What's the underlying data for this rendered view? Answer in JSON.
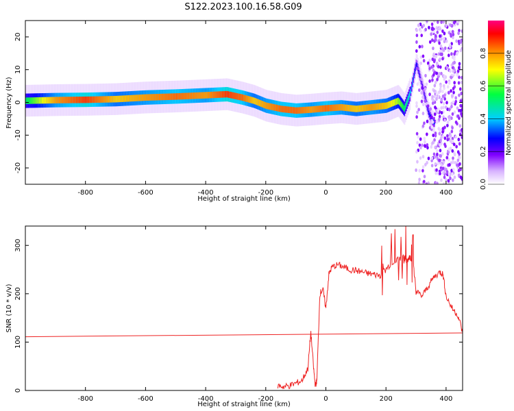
{
  "title": "S122.2023.100.16.58.G09",
  "chart_data": [
    {
      "type": "heatmap",
      "xlabel": "Height of straight line (km)",
      "ylabel": "Frequency (Hz)",
      "xlim": [
        -1000,
        455
      ],
      "ylim": [
        -25,
        25
      ],
      "x_ticks": [
        -800,
        -600,
        -400,
        -200,
        0,
        200,
        400
      ],
      "y_ticks": [
        -20,
        -10,
        0,
        10,
        20
      ],
      "colorbar": {
        "label": "Normalized spectral amplitude",
        "range": [
          0.0,
          1.0
        ],
        "ticks": [
          0.0,
          0.2,
          0.4,
          0.6,
          0.8
        ],
        "colors": [
          "#ffffff",
          "#d8b4ff",
          "#8000ff",
          "#0000ff",
          "#00d0ff",
          "#00ff40",
          "#ffff00",
          "#ff8000",
          "#ff0000"
        ]
      },
      "ridge": {
        "x": [
          -1000,
          -900,
          -800,
          -700,
          -600,
          -500,
          -400,
          -330,
          -280,
          -240,
          -200,
          -150,
          -100,
          -50,
          0,
          50,
          100,
          150,
          200,
          240,
          260,
          280,
          300,
          320,
          340,
          355
        ],
        "y": [
          0.5,
          0.7,
          0.8,
          1.0,
          1.5,
          1.8,
          2.2,
          2.5,
          1.5,
          0.5,
          -1.0,
          -2.0,
          -2.5,
          -2.2,
          -1.8,
          -1.5,
          -2.0,
          -1.5,
          -1.0,
          0.5,
          -2.0,
          3.0,
          12.0,
          5.0,
          -3.0,
          -6.0
        ],
        "amplitude": [
          0.6,
          0.85,
          0.95,
          0.8,
          0.85,
          0.9,
          0.85,
          0.95,
          0.9,
          0.8,
          0.85,
          0.9,
          0.9,
          0.85,
          0.9,
          0.85,
          0.8,
          0.85,
          0.8,
          0.7,
          0.6,
          0.5,
          0.35,
          0.3,
          0.35,
          0.4
        ]
      },
      "noise_region_x": [
        300,
        455
      ]
    },
    {
      "type": "line",
      "xlabel": "Height of straight line (km)",
      "ylabel": "SNR (10 * v/v)",
      "xlim": [
        -1000,
        455
      ],
      "ylim": [
        0,
        340
      ],
      "x_ticks": [
        -800,
        -600,
        -400,
        -200,
        0,
        200,
        400
      ],
      "y_ticks": [
        0,
        100,
        200,
        300
      ],
      "series": [
        {
          "color": "#ee2222",
          "x": [
            -160,
            -140,
            -120,
            -100,
            -80,
            -60,
            -50,
            -40,
            -35,
            -30,
            -20,
            -10,
            0,
            10,
            20,
            40,
            60,
            80,
            100,
            120,
            140,
            160,
            180,
            200,
            220,
            240,
            260,
            270,
            280,
            290,
            300,
            320,
            340,
            360,
            380,
            390,
            400,
            420,
            440,
            455
          ],
          "y": [
            10,
            8,
            10,
            15,
            20,
            45,
            120,
            40,
            10,
            20,
            200,
            210,
            170,
            240,
            255,
            260,
            255,
            250,
            248,
            245,
            242,
            240,
            238,
            250,
            265,
            270,
            275,
            270,
            275,
            270,
            205,
            195,
            215,
            235,
            245,
            240,
            195,
            170,
            155,
            120
          ]
        },
        {
          "color": "#ee2222",
          "x": [
            -1000,
            455
          ],
          "y": [
            111,
            119
          ]
        }
      ]
    }
  ]
}
